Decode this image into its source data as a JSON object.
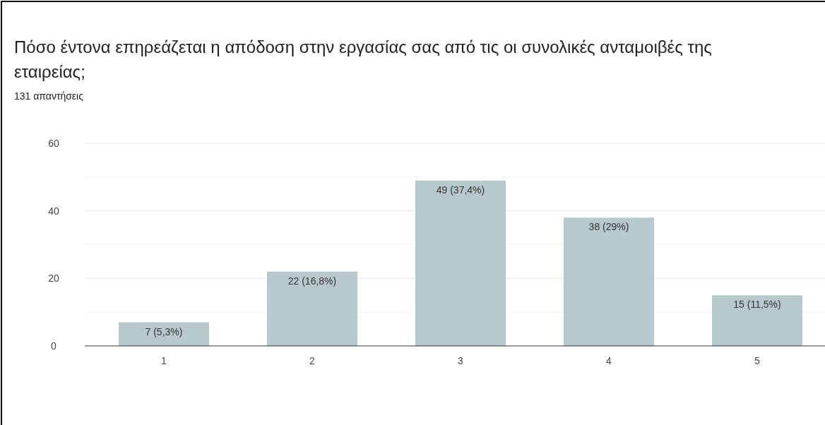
{
  "chart_data": {
    "type": "bar",
    "title": "Πόσο έντονα επηρεάζεται η απόδοση στην εργασίας σας από τις οι συνολικές ανταμοιβές της εταιρείας;",
    "subtitle": "131 απαντήσεις",
    "categories": [
      "1",
      "2",
      "3",
      "4",
      "5"
    ],
    "values": [
      7,
      22,
      49,
      38,
      15
    ],
    "color": "#b7c9cd",
    "value_labels": [
      "7 (5,3%)",
      "22 (16,8%)",
      "49 (37,4%)",
      "38 (29%)",
      "15 (11,5%)"
    ],
    "ylim": [
      0,
      60
    ],
    "yticks": [
      0,
      {
        "value": 10,
        "label": null
      },
      20,
      {
        "value": 30,
        "label": null
      },
      40,
      {
        "value": 50,
        "label": null
      },
      60
    ],
    "grid": "y"
  }
}
